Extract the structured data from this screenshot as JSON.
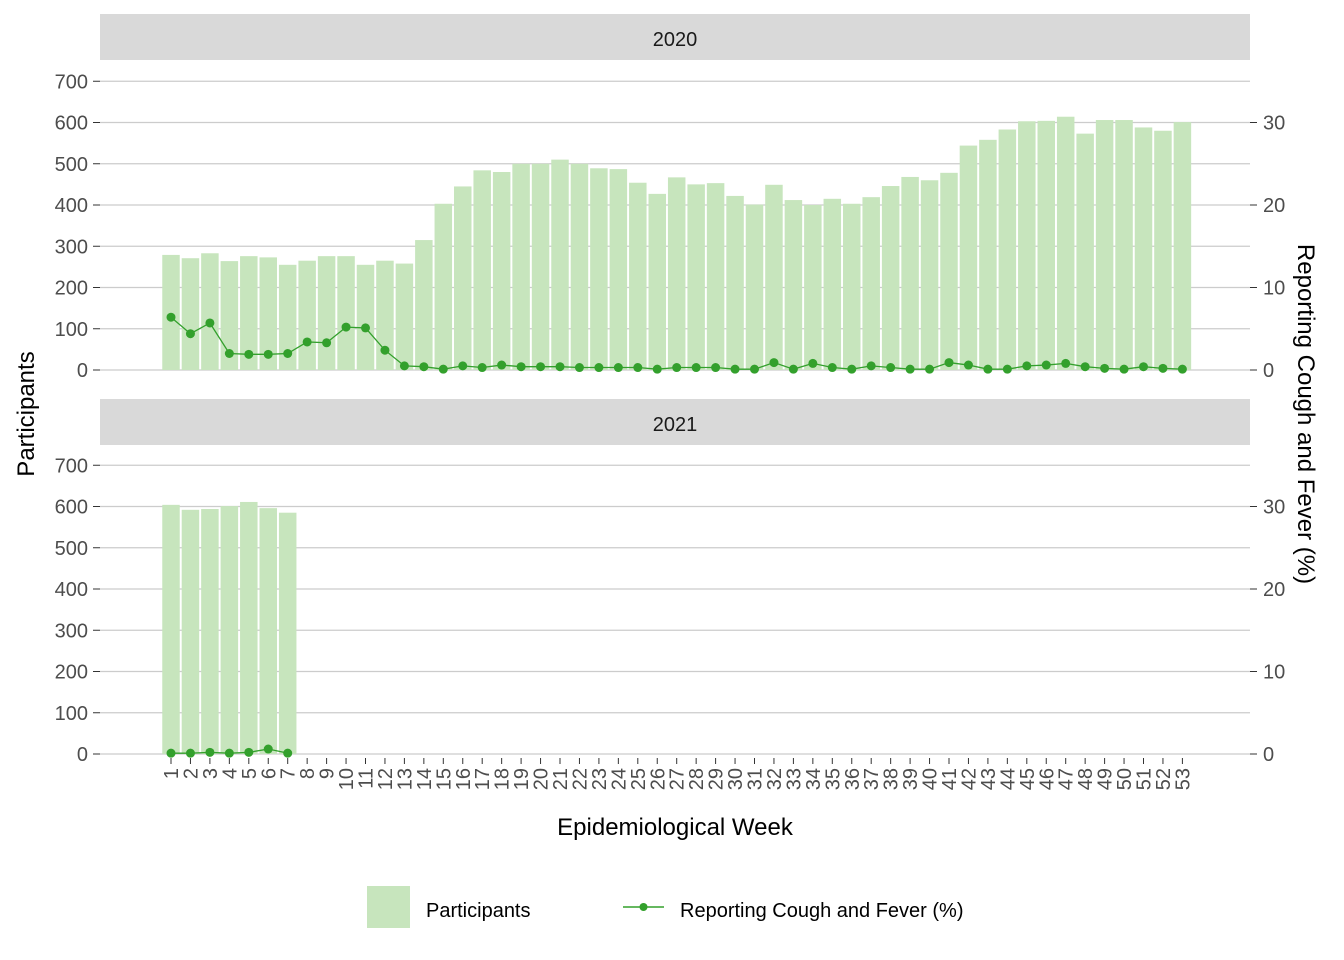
{
  "colors": {
    "bar": "#c7e5bd",
    "line": "#33a02c",
    "strip": "#d9d9d9",
    "grid": "#cccccc",
    "axis_text": "#4d4d4d",
    "title_text": "#000000"
  },
  "chart_data": {
    "type": "bar",
    "facet_var": "year",
    "x_ticks": [
      1,
      2,
      3,
      4,
      5,
      6,
      7,
      8,
      9,
      10,
      11,
      12,
      13,
      14,
      15,
      16,
      17,
      18,
      19,
      20,
      21,
      22,
      23,
      24,
      25,
      26,
      27,
      28,
      29,
      30,
      31,
      32,
      33,
      34,
      35,
      36,
      37,
      38,
      39,
      40,
      41,
      42,
      43,
      44,
      45,
      46,
      47,
      48,
      49,
      50,
      51,
      52,
      53
    ],
    "xlabel": "Epidemiological Week",
    "ylabel": "Participants",
    "y2label": "Reporting Cough and Fever (%)",
    "ylim": [
      0,
      700
    ],
    "yticks": [
      0,
      100,
      200,
      300,
      400,
      500,
      600,
      700
    ],
    "y2lim": [
      0,
      35
    ],
    "y2ticks": [
      0,
      10,
      20,
      30
    ],
    "grid": true,
    "legend": {
      "position": "bottom",
      "bar_label": "Participants",
      "line_label": "Reporting Cough and Fever (%)"
    },
    "panels": [
      {
        "strip": "2020",
        "weeks": [
          1,
          2,
          3,
          4,
          5,
          6,
          7,
          8,
          9,
          10,
          11,
          12,
          13,
          14,
          15,
          16,
          17,
          18,
          19,
          20,
          21,
          22,
          23,
          24,
          25,
          26,
          27,
          28,
          29,
          30,
          31,
          32,
          33,
          34,
          35,
          36,
          37,
          38,
          39,
          40,
          41,
          42,
          43,
          44,
          45,
          46,
          47,
          48,
          49,
          50,
          51,
          52,
          53
        ],
        "participants": [
          279,
          271,
          283,
          264,
          276,
          273,
          255,
          265,
          276,
          276,
          255,
          265,
          258,
          315,
          403,
          445,
          484,
          480,
          500,
          500,
          510,
          500,
          489,
          487,
          454,
          427,
          467,
          450,
          453,
          422,
          401,
          449,
          412,
          400,
          415,
          403,
          419,
          446,
          468,
          460,
          478,
          544,
          558,
          583,
          603,
          604,
          614,
          573,
          606,
          606,
          588,
          580,
          601
        ],
        "cough_fever_pct": [
          6.4,
          4.4,
          5.7,
          2.0,
          1.9,
          1.9,
          2.0,
          3.4,
          3.3,
          5.2,
          5.1,
          2.4,
          0.5,
          0.4,
          0.1,
          0.5,
          0.3,
          0.6,
          0.4,
          0.4,
          0.4,
          0.3,
          0.3,
          0.3,
          0.3,
          0.1,
          0.3,
          0.3,
          0.3,
          0.1,
          0.1,
          0.9,
          0.1,
          0.8,
          0.3,
          0.1,
          0.5,
          0.3,
          0.1,
          0.1,
          0.9,
          0.6,
          0.1,
          0.1,
          0.5,
          0.6,
          0.8,
          0.4,
          0.2,
          0.1,
          0.4,
          0.2,
          0.1
        ]
      },
      {
        "strip": "2021",
        "weeks": [
          1,
          2,
          3,
          4,
          5,
          6,
          7
        ],
        "participants": [
          604,
          592,
          594,
          601,
          611,
          596,
          585
        ],
        "cough_fever_pct": [
          0.1,
          0.1,
          0.2,
          0.1,
          0.2,
          0.6,
          0.1
        ]
      }
    ]
  }
}
